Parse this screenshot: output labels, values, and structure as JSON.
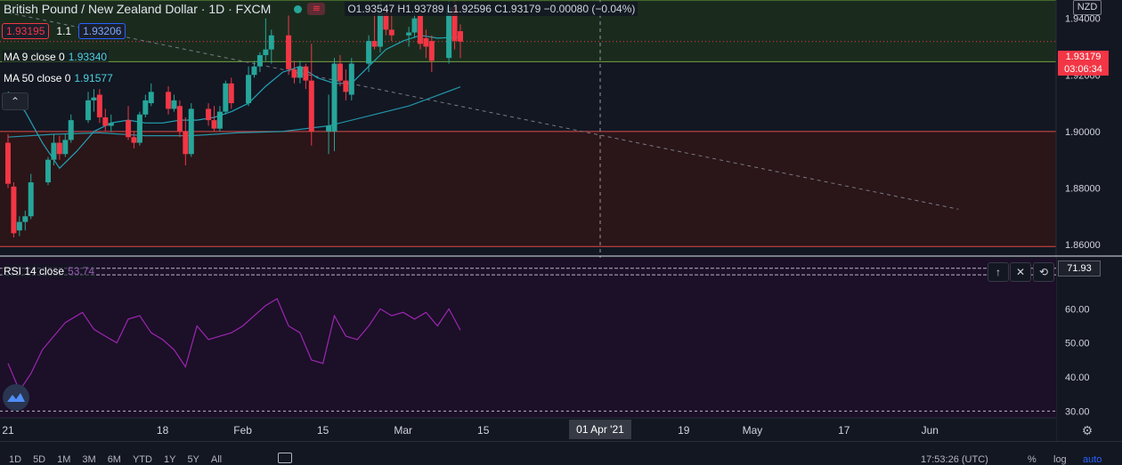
{
  "header": {
    "title": "British Pound / New Zealand Dollar · 1D · FXCM",
    "ohlc": {
      "o_label": "O",
      "o": "1.93547",
      "h_label": "H",
      "h": "1.93789",
      "l_label": "L",
      "l": "1.92596",
      "c_label": "C",
      "c": "1.93179",
      "change": "−0.00080 (−0.04%)"
    },
    "wave_icon": "≋"
  },
  "bidask": {
    "bid": "1.93195",
    "spread": "1.1",
    "ask": "1.93206"
  },
  "indicators": {
    "ma9_label": "MA 9 close 0",
    "ma9_value": "1.93340",
    "ma50_label": "MA 50 close 0",
    "ma50_value": "1.91577",
    "rsi_label": "RSI 14 close",
    "rsi_value": "53.74",
    "collapse_icon": "⌃"
  },
  "currency": "NZD",
  "current_price": {
    "price": "1.93179",
    "countdown": "03:06:34"
  },
  "rsi_marker": "71.93",
  "pane_buttons": {
    "up": "↑",
    "close": "✕",
    "swap": "⟲"
  },
  "crosshair_date": "01 Apr '21",
  "bottom_bar": {
    "ranges": [
      "1D",
      "5D",
      "1M",
      "3M",
      "6M",
      "YTD",
      "1Y",
      "5Y",
      "All"
    ],
    "time": "17:53:26 (UTC)",
    "percent": "%",
    "log": "log",
    "auto": "auto"
  },
  "colors": {
    "background": "#131722",
    "bull": "#26a69a",
    "bear": "#f23645",
    "upper_zone": "#1a2b1e",
    "lower_zone": "#2a1518",
    "rsi_pane": "#1c0f28",
    "ma": "#22a3b8",
    "rsi_line": "#9c27b0"
  },
  "chart_data": [
    {
      "type": "candlestick",
      "title": "British Pound / New Zealand Dollar · 1D · FXCM",
      "x_ticks": [
        {
          "label": "21",
          "day": 0
        },
        {
          "label": "18",
          "day": 27
        },
        {
          "label": "Feb",
          "day": 41
        },
        {
          "label": "15",
          "day": 55
        },
        {
          "label": "Mar",
          "day": 69
        },
        {
          "label": "15",
          "day": 83
        },
        {
          "label": "01 Apr '21",
          "day": 100
        },
        {
          "label": "19",
          "day": 118
        },
        {
          "label": "May",
          "day": 130
        },
        {
          "label": "17",
          "day": 146
        },
        {
          "label": "Jun",
          "day": 161
        }
      ],
      "y_ticks": [
        1.86,
        1.88,
        1.9,
        1.92,
        1.94
      ],
      "ylim": [
        1.8575,
        1.9465
      ],
      "xlim_days": [
        0,
        166
      ],
      "zones": [
        {
          "name": "resistance",
          "from": 1.9247,
          "to": 1.9465
        },
        {
          "name": "support",
          "from": 1.8593,
          "to": 1.9
        }
      ],
      "lines": [
        {
          "name": "top_line",
          "value": 1.9465
        },
        {
          "name": "mid_line",
          "value": 1.9247
        },
        {
          "name": "zone_split",
          "value": 1.9
        },
        {
          "name": "bottom_line",
          "value": 1.8593
        },
        {
          "name": "last_price",
          "value": 1.93179
        }
      ],
      "trendline": {
        "start": {
          "day": 0,
          "value": 1.942
        },
        "end": {
          "day": 166,
          "value": 1.8725
        }
      },
      "candles": [
        {
          "day": 0,
          "o": 1.896,
          "h": 1.899,
          "l": 1.88,
          "c": 1.8815
        },
        {
          "day": 1,
          "o": 1.8805,
          "h": 1.882,
          "l": 1.8625,
          "c": 1.864
        },
        {
          "day": 2,
          "o": 1.865,
          "h": 1.87,
          "l": 1.863,
          "c": 1.868
        },
        {
          "day": 3,
          "o": 1.868,
          "h": 1.872,
          "l": 1.865,
          "c": 1.87
        },
        {
          "day": 4,
          "o": 1.87,
          "h": 1.885,
          "l": 1.869,
          "c": 1.882
        },
        {
          "day": 7,
          "o": 1.882,
          "h": 1.891,
          "l": 1.881,
          "c": 1.89
        },
        {
          "day": 8,
          "o": 1.89,
          "h": 1.899,
          "l": 1.888,
          "c": 1.896
        },
        {
          "day": 9,
          "o": 1.896,
          "h": 1.8985,
          "l": 1.89,
          "c": 1.892
        },
        {
          "day": 10,
          "o": 1.892,
          "h": 1.899,
          "l": 1.891,
          "c": 1.897
        },
        {
          "day": 11,
          "o": 1.897,
          "h": 1.906,
          "l": 1.896,
          "c": 1.904
        },
        {
          "day": 14,
          "o": 1.904,
          "h": 1.914,
          "l": 1.903,
          "c": 1.911
        },
        {
          "day": 15,
          "o": 1.911,
          "h": 1.915,
          "l": 1.907,
          "c": 1.912
        },
        {
          "day": 16,
          "o": 1.913,
          "h": 1.915,
          "l": 1.903,
          "c": 1.905
        },
        {
          "day": 17,
          "o": 1.905,
          "h": 1.908,
          "l": 1.9,
          "c": 1.902
        },
        {
          "day": 18,
          "o": 1.902,
          "h": 1.906,
          "l": 1.9,
          "c": 1.903
        },
        {
          "day": 21,
          "o": 1.904,
          "h": 1.909,
          "l": 1.897,
          "c": 1.898
        },
        {
          "day": 22,
          "o": 1.898,
          "h": 1.9,
          "l": 1.894,
          "c": 1.896
        },
        {
          "day": 23,
          "o": 1.896,
          "h": 1.907,
          "l": 1.895,
          "c": 1.906
        },
        {
          "day": 24,
          "o": 1.906,
          "h": 1.913,
          "l": 1.905,
          "c": 1.911
        },
        {
          "day": 25,
          "o": 1.91,
          "h": 1.917,
          "l": 1.909,
          "c": 1.914
        },
        {
          "day": 28,
          "o": 1.914,
          "h": 1.916,
          "l": 1.906,
          "c": 1.908
        },
        {
          "day": 29,
          "o": 1.908,
          "h": 1.913,
          "l": 1.907,
          "c": 1.911
        },
        {
          "day": 30,
          "o": 1.909,
          "h": 1.911,
          "l": 1.898,
          "c": 1.9
        },
        {
          "day": 31,
          "o": 1.9,
          "h": 1.905,
          "l": 1.888,
          "c": 1.892
        },
        {
          "day": 32,
          "o": 1.892,
          "h": 1.91,
          "l": 1.891,
          "c": 1.908
        },
        {
          "day": 35,
          "o": 1.908,
          "h": 1.91,
          "l": 1.902,
          "c": 1.904
        },
        {
          "day": 36,
          "o": 1.904,
          "h": 1.909,
          "l": 1.9,
          "c": 1.901
        },
        {
          "day": 37,
          "o": 1.901,
          "h": 1.909,
          "l": 1.9,
          "c": 1.907
        },
        {
          "day": 38,
          "o": 1.907,
          "h": 1.918,
          "l": 1.906,
          "c": 1.917
        },
        {
          "day": 39,
          "o": 1.917,
          "h": 1.919,
          "l": 1.908,
          "c": 1.91
        },
        {
          "day": 42,
          "o": 1.91,
          "h": 1.923,
          "l": 1.909,
          "c": 1.92
        },
        {
          "day": 43,
          "o": 1.92,
          "h": 1.925,
          "l": 1.919,
          "c": 1.923
        },
        {
          "day": 44,
          "o": 1.923,
          "h": 1.928,
          "l": 1.921,
          "c": 1.927
        },
        {
          "day": 45,
          "o": 1.927,
          "h": 1.94,
          "l": 1.925,
          "c": 1.929
        },
        {
          "day": 46,
          "o": 1.929,
          "h": 1.936,
          "l": 1.924,
          "c": 1.934
        },
        {
          "day": 49,
          "o": 1.934,
          "h": 1.941,
          "l": 1.92,
          "c": 1.922
        },
        {
          "day": 50,
          "o": 1.922,
          "h": 1.925,
          "l": 1.917,
          "c": 1.919
        },
        {
          "day": 51,
          "o": 1.919,
          "h": 1.925,
          "l": 1.917,
          "c": 1.923
        },
        {
          "day": 52,
          "o": 1.923,
          "h": 1.924,
          "l": 1.915,
          "c": 1.918
        },
        {
          "day": 53,
          "o": 1.918,
          "h": 1.931,
          "l": 1.895,
          "c": 1.9
        },
        {
          "day": 56,
          "o": 1.9,
          "h": 1.913,
          "l": 1.892,
          "c": 1.902
        },
        {
          "day": 57,
          "o": 1.9,
          "h": 1.926,
          "l": 1.893,
          "c": 1.924
        },
        {
          "day": 58,
          "o": 1.924,
          "h": 1.927,
          "l": 1.916,
          "c": 1.918
        },
        {
          "day": 59,
          "o": 1.918,
          "h": 1.922,
          "l": 1.911,
          "c": 1.914
        },
        {
          "day": 60,
          "o": 1.913,
          "h": 1.926,
          "l": 1.911,
          "c": 1.924
        },
        {
          "day": 63,
          "o": 1.924,
          "h": 1.934,
          "l": 1.921,
          "c": 1.932
        },
        {
          "day": 64,
          "o": 1.932,
          "h": 1.942,
          "l": 1.929,
          "c": 1.93
        },
        {
          "day": 65,
          "o": 1.93,
          "h": 1.946,
          "l": 1.928,
          "c": 1.942
        },
        {
          "day": 66,
          "o": 1.942,
          "h": 1.944,
          "l": 1.934,
          "c": 1.936
        },
        {
          "day": 67,
          "o": 1.936,
          "h": 1.943,
          "l": 1.932,
          "c": 1.934
        },
        {
          "day": 70,
          "o": 1.934,
          "h": 1.937,
          "l": 1.93,
          "c": 1.935
        },
        {
          "day": 71,
          "o": 1.935,
          "h": 1.942,
          "l": 1.933,
          "c": 1.94
        },
        {
          "day": 72,
          "o": 1.941,
          "h": 1.942,
          "l": 1.929,
          "c": 1.931
        },
        {
          "day": 73,
          "o": 1.933,
          "h": 1.936,
          "l": 1.926,
          "c": 1.93
        },
        {
          "day": 74,
          "o": 1.932,
          "h": 1.934,
          "l": 1.921,
          "c": 1.925
        },
        {
          "day": 77,
          "o": 1.926,
          "h": 1.946,
          "l": 1.924,
          "c": 1.944
        },
        {
          "day": 78,
          "o": 1.944,
          "h": 1.946,
          "l": 1.929,
          "c": 1.932
        },
        {
          "day": 79,
          "o": 1.93547,
          "h": 1.93789,
          "l": 1.92596,
          "c": 1.93179
        }
      ],
      "ma9": {
        "name": "MA 9 close 0",
        "points": [
          [
            0,
            1.914
          ],
          [
            3,
            1.907
          ],
          [
            6,
            1.896
          ],
          [
            9,
            1.887
          ],
          [
            12,
            1.893
          ],
          [
            15,
            1.9
          ],
          [
            18,
            1.903
          ],
          [
            21,
            1.904
          ],
          [
            24,
            1.903
          ],
          [
            27,
            1.903
          ],
          [
            30,
            1.904
          ],
          [
            33,
            1.904
          ],
          [
            36,
            1.905
          ],
          [
            39,
            1.907
          ],
          [
            42,
            1.91
          ],
          [
            45,
            1.916
          ],
          [
            48,
            1.921
          ],
          [
            51,
            1.923
          ],
          [
            54,
            1.919
          ],
          [
            57,
            1.917
          ],
          [
            60,
            1.917
          ],
          [
            63,
            1.923
          ],
          [
            66,
            1.929
          ],
          [
            69,
            1.932
          ],
          [
            72,
            1.934
          ],
          [
            75,
            1.933
          ],
          [
            79,
            1.9334
          ]
        ]
      },
      "ma50": {
        "name": "MA 50 close 0",
        "points": [
          [
            0,
            1.898
          ],
          [
            8,
            1.899
          ],
          [
            16,
            1.8995
          ],
          [
            24,
            1.8985
          ],
          [
            32,
            1.8985
          ],
          [
            40,
            1.8995
          ],
          [
            48,
            1.9
          ],
          [
            56,
            1.902
          ],
          [
            64,
            1.906
          ],
          [
            70,
            1.909
          ],
          [
            74,
            1.912
          ],
          [
            79,
            1.91577
          ]
        ]
      }
    },
    {
      "type": "line",
      "title": "RSI 14 close",
      "series": [
        {
          "name": "RSI 14 close",
          "values": [
            [
              0,
              44
            ],
            [
              2,
              36
            ],
            [
              4,
              41
            ],
            [
              6,
              48
            ],
            [
              8,
              52
            ],
            [
              10,
              56
            ],
            [
              13,
              59
            ],
            [
              15,
              54
            ],
            [
              17,
              52
            ],
            [
              19,
              50
            ],
            [
              21,
              57
            ],
            [
              23,
              58
            ],
            [
              25,
              53
            ],
            [
              27,
              51
            ],
            [
              29,
              48
            ],
            [
              31,
              43
            ],
            [
              33,
              55
            ],
            [
              35,
              51
            ],
            [
              37,
              52
            ],
            [
              39,
              53
            ],
            [
              41,
              55
            ],
            [
              43,
              58
            ],
            [
              45,
              61
            ],
            [
              47,
              63
            ],
            [
              49,
              55
            ],
            [
              51,
              53
            ],
            [
              53,
              45
            ],
            [
              55,
              44
            ],
            [
              57,
              58
            ],
            [
              59,
              52
            ],
            [
              61,
              51
            ],
            [
              63,
              55
            ],
            [
              65,
              60
            ],
            [
              67,
              58
            ],
            [
              69,
              59
            ],
            [
              71,
              57
            ],
            [
              73,
              59
            ],
            [
              75,
              55
            ],
            [
              77,
              60
            ],
            [
              79,
              53.74
            ]
          ]
        }
      ],
      "y_ticks": [
        30.0,
        40.0,
        50.0,
        60.0
      ],
      "ylim": [
        28,
        75
      ],
      "levels": [
        71.93,
        70,
        30
      ]
    }
  ]
}
